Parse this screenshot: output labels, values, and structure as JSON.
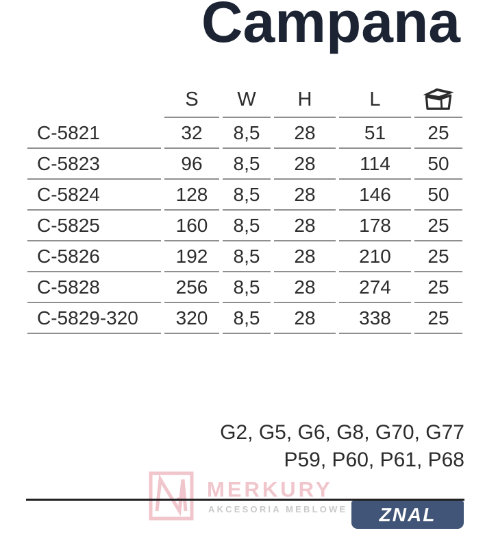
{
  "title": "Campana",
  "table": {
    "headers": {
      "name": "",
      "s": "S",
      "w": "W",
      "h": "H",
      "l": "L",
      "qty_icon": "box-icon"
    },
    "rows": [
      {
        "name": "C-5821",
        "s": "32",
        "w": "8,5",
        "h": "28",
        "l": "51",
        "qty": "25"
      },
      {
        "name": "C-5823",
        "s": "96",
        "w": "8,5",
        "h": "28",
        "l": "114",
        "qty": "50"
      },
      {
        "name": "C-5824",
        "s": "128",
        "w": "8,5",
        "h": "28",
        "l": "146",
        "qty": "50"
      },
      {
        "name": "C-5825",
        "s": "160",
        "w": "8,5",
        "h": "28",
        "l": "178",
        "qty": "25"
      },
      {
        "name": "C-5826",
        "s": "192",
        "w": "8,5",
        "h": "28",
        "l": "210",
        "qty": "25"
      },
      {
        "name": "C-5828",
        "s": "256",
        "w": "8,5",
        "h": "28",
        "l": "274",
        "qty": "25"
      },
      {
        "name": "C-5829-320",
        "s": "320",
        "w": "8,5",
        "h": "28",
        "l": "338",
        "qty": "25"
      }
    ]
  },
  "finishes": {
    "line1": "G2, G5, G6, G8, G70, G77",
    "line2": "P59, P60, P61, P68"
  },
  "footer": {
    "brand": "MERKURY",
    "brand_sub": "AKCESORIA MEBLOWE",
    "material_badge": "ZNAL",
    "logo": "merkury-ma-monogram"
  },
  "colors": {
    "navy": "#1c2434",
    "text": "#2c2c2c",
    "line": "#8f8f8f",
    "rule": "#232021",
    "pink": "#f0c5cb",
    "lightgray": "#c9c9c9",
    "badge": "#415578"
  }
}
